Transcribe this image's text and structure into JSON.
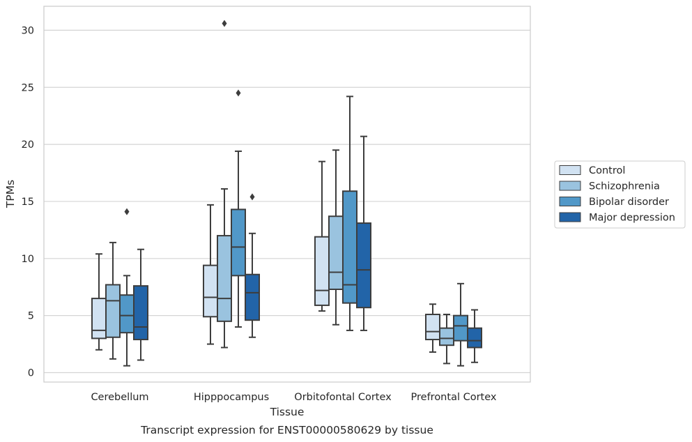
{
  "caption": "Transcript expression for ENST00000580629 by tissue",
  "chart_data": {
    "type": "boxplot",
    "xlabel": "Tissue",
    "ylabel": "TPMs",
    "ylim": [
      -0.6,
      32
    ],
    "yticks": [
      0,
      5,
      10,
      15,
      20,
      25,
      30
    ],
    "grid": "horizontal",
    "legend_position": "right",
    "categories": [
      "Cerebellum",
      "Hipppocampus",
      "Orbitofontal Cortex",
      "Prefrontal Cortex"
    ],
    "series": [
      {
        "name": "Control",
        "color": "#d1e2f2",
        "boxes": [
          {
            "whislo": 2.0,
            "q1": 3.0,
            "med": 3.7,
            "q3": 6.5,
            "whishi": 10.4,
            "fliers": []
          },
          {
            "whislo": 2.5,
            "q1": 4.9,
            "med": 6.6,
            "q3": 9.4,
            "whishi": 14.7,
            "fliers": []
          },
          {
            "whislo": 5.4,
            "q1": 5.9,
            "med": 7.2,
            "q3": 11.9,
            "whishi": 18.5,
            "fliers": []
          },
          {
            "whislo": 1.8,
            "q1": 2.9,
            "med": 3.6,
            "q3": 5.1,
            "whishi": 6.0,
            "fliers": []
          }
        ]
      },
      {
        "name": "Schizophrenia",
        "color": "#9ac3df",
        "boxes": [
          {
            "whislo": 1.2,
            "q1": 3.1,
            "med": 6.3,
            "q3": 7.7,
            "whishi": 11.4,
            "fliers": []
          },
          {
            "whislo": 2.2,
            "q1": 4.5,
            "med": 6.5,
            "q3": 12.0,
            "whishi": 16.1,
            "fliers": [
              30.6
            ]
          },
          {
            "whislo": 4.2,
            "q1": 7.3,
            "med": 8.8,
            "q3": 13.7,
            "whishi": 19.5,
            "fliers": []
          },
          {
            "whislo": 0.8,
            "q1": 2.4,
            "med": 3.0,
            "q3": 3.9,
            "whishi": 5.1,
            "fliers": []
          }
        ]
      },
      {
        "name": "Bipolar disorder",
        "color": "#5198c8",
        "boxes": [
          {
            "whislo": 0.6,
            "q1": 3.5,
            "med": 5.0,
            "q3": 6.8,
            "whishi": 8.5,
            "fliers": [
              14.1
            ]
          },
          {
            "whislo": 4.0,
            "q1": 8.5,
            "med": 11.0,
            "q3": 14.3,
            "whishi": 19.4,
            "fliers": [
              24.5
            ]
          },
          {
            "whislo": 3.7,
            "q1": 6.1,
            "med": 7.7,
            "q3": 15.9,
            "whishi": 24.2,
            "fliers": []
          },
          {
            "whislo": 0.6,
            "q1": 2.8,
            "med": 4.1,
            "q3": 5.0,
            "whishi": 7.8,
            "fliers": []
          }
        ]
      },
      {
        "name": "Major depression",
        "color": "#2264a8",
        "boxes": [
          {
            "whislo": 1.1,
            "q1": 2.9,
            "med": 4.0,
            "q3": 7.6,
            "whishi": 10.8,
            "fliers": []
          },
          {
            "whislo": 3.1,
            "q1": 4.6,
            "med": 7.0,
            "q3": 8.6,
            "whishi": 12.2,
            "fliers": [
              15.4
            ]
          },
          {
            "whislo": 3.7,
            "q1": 5.7,
            "med": 9.0,
            "q3": 13.1,
            "whishi": 20.7,
            "fliers": []
          },
          {
            "whislo": 0.9,
            "q1": 2.2,
            "med": 2.8,
            "q3": 3.9,
            "whishi": 5.5,
            "fliers": []
          }
        ]
      }
    ]
  }
}
